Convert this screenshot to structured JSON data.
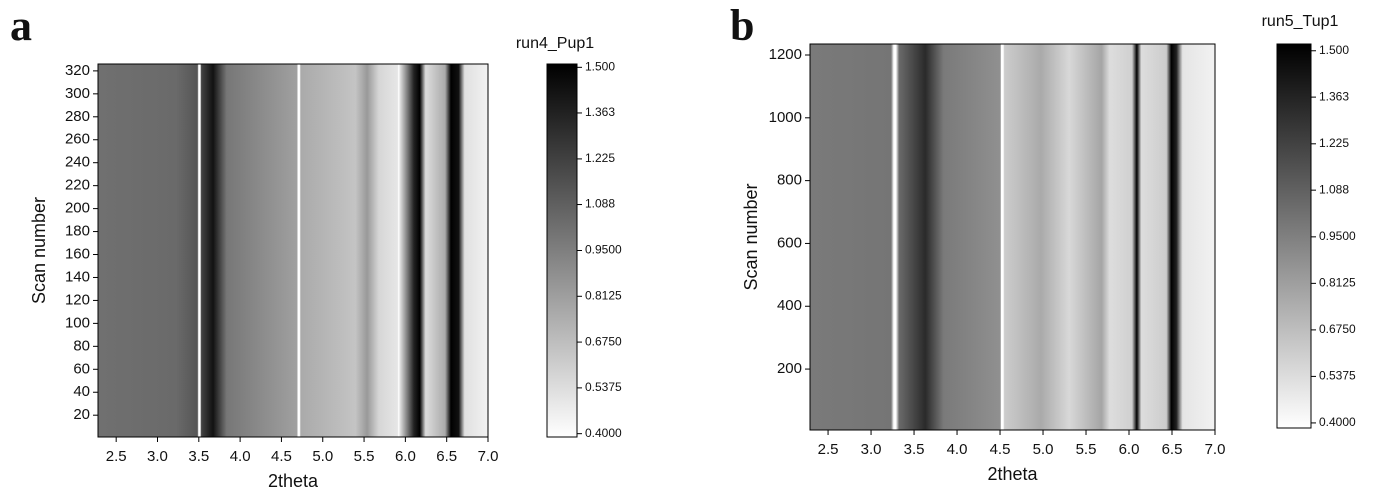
{
  "chart_data": [
    {
      "type": "heatmap",
      "panel_label": "a",
      "xlabel": "2theta",
      "ylabel": "Scan number",
      "colorbar_title": "run4_Pup1",
      "xlim": [
        2.28,
        7.0
      ],
      "xticks": [
        2.5,
        {
          "value": 3,
          "label": "3.0"
        },
        3.5,
        {
          "value": 4,
          "label": "4.0"
        },
        4.5,
        {
          "value": 5,
          "label": "5.0"
        },
        5.5,
        {
          "value": 6,
          "label": "6.0"
        },
        6.5,
        {
          "value": 7,
          "label": "7.0"
        }
      ],
      "ylim": [
        1,
        326
      ],
      "yticks": [
        20,
        40,
        60,
        80,
        100,
        120,
        140,
        160,
        180,
        200,
        220,
        240,
        260,
        280,
        300,
        320
      ],
      "zlim": [
        0.39,
        1.51
      ],
      "zticks": [
        {
          "value": 1.5,
          "label": "1.500"
        },
        {
          "value": 1.363,
          "label": "1.363"
        },
        {
          "value": 1.225,
          "label": "1.225"
        },
        {
          "value": 1.088,
          "label": "1.088"
        },
        {
          "value": 0.95,
          "label": "0.9500"
        },
        {
          "value": 0.8125,
          "label": "0.8125"
        },
        {
          "value": 0.675,
          "label": "0.6750"
        },
        {
          "value": 0.5375,
          "label": "0.5375"
        },
        {
          "value": 0.4,
          "label": "0.4000"
        }
      ]
    },
    {
      "type": "heatmap",
      "panel_label": "b",
      "xlabel": "2theta",
      "ylabel": "Scan number",
      "colorbar_title": "run5_Tup1",
      "xlim": [
        2.29,
        7.0
      ],
      "xticks": [
        2.5,
        {
          "value": 3,
          "label": "3.0"
        },
        3.5,
        {
          "value": 4,
          "label": "4.0"
        },
        4.5,
        {
          "value": 5,
          "label": "5.0"
        },
        5.5,
        {
          "value": 6,
          "label": "6.0"
        },
        6.5,
        {
          "value": 7,
          "label": "7.0"
        }
      ],
      "ylim": [
        6,
        1235
      ],
      "yticks": [
        200,
        400,
        600,
        800,
        1000,
        1200
      ],
      "zlim": [
        0.385,
        1.52
      ],
      "zticks": [
        {
          "value": 1.5,
          "label": "1.500"
        },
        {
          "value": 1.363,
          "label": "1.363"
        },
        {
          "value": 1.225,
          "label": "1.225"
        },
        {
          "value": 1.088,
          "label": "1.088"
        },
        {
          "value": 0.95,
          "label": "0.9500"
        },
        {
          "value": 0.8125,
          "label": "0.8125"
        },
        {
          "value": 0.675,
          "label": "0.6750"
        },
        {
          "value": 0.5375,
          "label": "0.5375"
        },
        {
          "value": 0.4,
          "label": "0.4000"
        }
      ]
    }
  ]
}
